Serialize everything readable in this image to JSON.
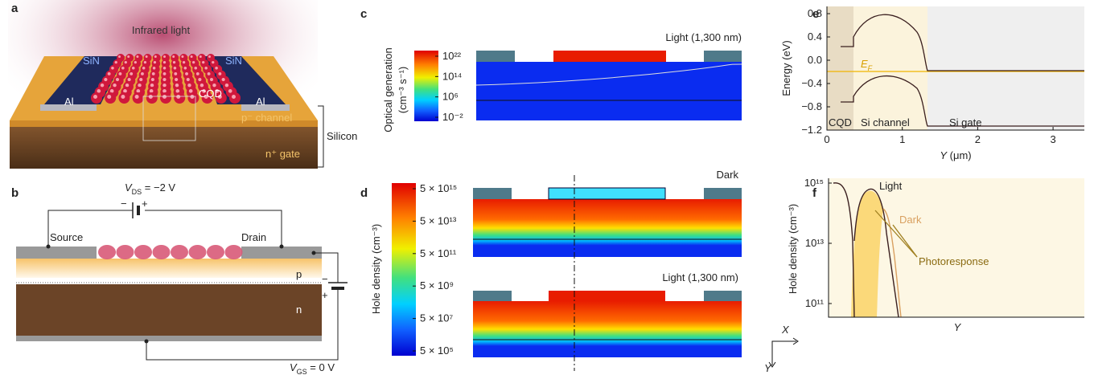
{
  "panels": {
    "a": {
      "label": "a",
      "infrared": "Infrared light",
      "sin_left": "SiN",
      "sin_right": "SiN",
      "al_left": "Al",
      "al_right": "Al",
      "cqd": "CQD",
      "channel": "p⁻ channel",
      "gate": "n⁺ gate",
      "silicon": "Silicon"
    },
    "b": {
      "label": "b",
      "vds": {
        "symbol": "V",
        "sub": "DS",
        "value": " = −2 V"
      },
      "source": "Source",
      "drain": "Drain",
      "p": "p",
      "n": "n",
      "vgs": {
        "symbol": "V",
        "sub": "GS",
        "value": " = 0 V"
      },
      "minus_top": "−",
      "plus_top": "+",
      "minus_right": "−",
      "plus_right": "+"
    },
    "c": {
      "label": "c",
      "light": "Light (1,300 nm)",
      "colorbar_title": "Optical generation",
      "colorbar_unit": "(cm⁻³ s⁻¹)",
      "colorbar_ticks": [
        "10²²",
        "10¹⁴",
        "10⁶",
        "10⁻²"
      ]
    },
    "d": {
      "label": "d",
      "dark": "Dark",
      "light": "Light (1,300 nm)",
      "colorbar_title": "Hole density (cm⁻³)",
      "colorbar_ticks": [
        "5 × 10¹⁵",
        "5 × 10¹³",
        "5 × 10¹¹",
        "5 × 10⁹",
        "5 × 10⁷",
        "5 × 10⁵"
      ]
    },
    "e": {
      "label": "e",
      "y_title": "Energy (eV)",
      "x_title": {
        "symbol": "Y",
        "unit": " (μm)"
      },
      "y_ticks": [
        "0.8",
        "0.4",
        "0.0",
        "−0.4",
        "−0.8",
        "−1.2"
      ],
      "x_ticks": [
        "0",
        "1",
        "2",
        "3"
      ],
      "fermi": {
        "symbol": "E",
        "sub": "F"
      },
      "regions": [
        "CQD",
        "Si channel",
        "Si gate"
      ]
    },
    "f": {
      "label": "f",
      "y_title": "Hole density (cm⁻³)",
      "x_title": "Y",
      "y_ticks": [
        "10¹⁵",
        "10¹³",
        "10¹¹"
      ],
      "light": "Light",
      "dark": "Dark",
      "photoresponse": "Photoresponse"
    },
    "axes": {
      "x": "X",
      "y": "Y"
    }
  }
}
